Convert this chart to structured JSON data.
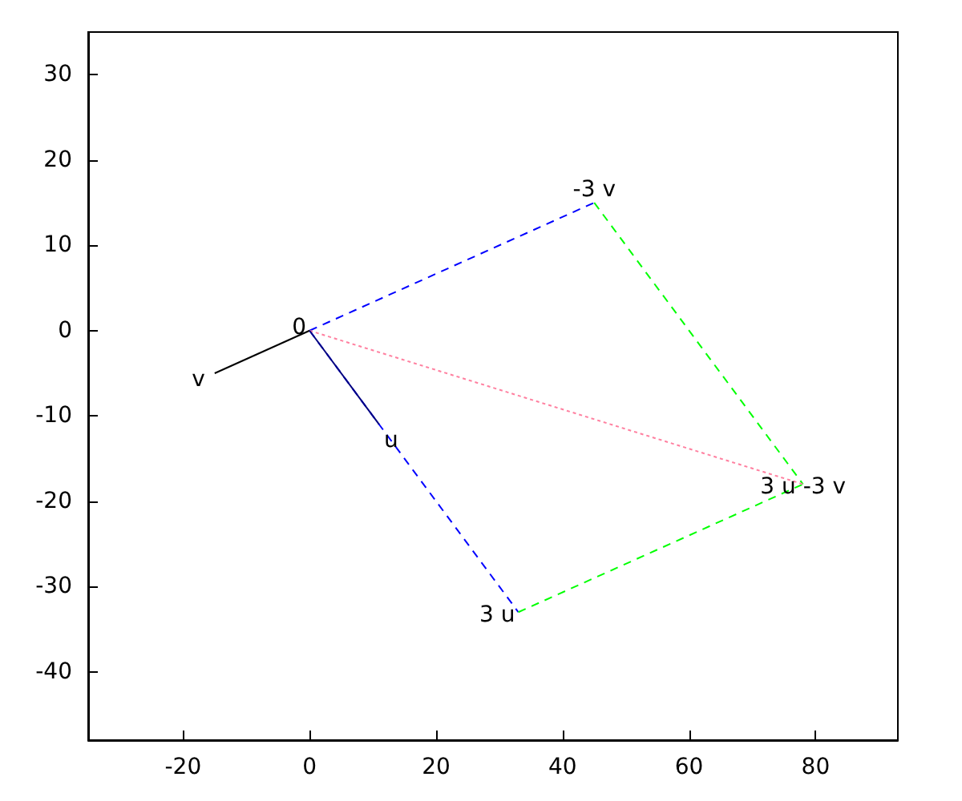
{
  "chart_data": {
    "type": "line",
    "xlim": [
      -35,
      93
    ],
    "ylim": [
      -48,
      35
    ],
    "xticks": [
      -20,
      0,
      20,
      40,
      60,
      80
    ],
    "yticks": [
      -40,
      -30,
      -20,
      -10,
      0,
      10,
      20,
      30
    ],
    "grid": false,
    "marker": "none",
    "series": [
      {
        "color": "#0000ff",
        "line_style": "dashed",
        "x": [
          0,
          45
        ],
        "values": [
          0,
          15
        ]
      },
      {
        "color": "#0000ff",
        "line_style": "dashed",
        "x": [
          0,
          33
        ],
        "values": [
          0,
          -33
        ]
      },
      {
        "color": "#00ff00",
        "line_style": "dashed",
        "x": [
          45,
          78
        ],
        "values": [
          15,
          -18
        ]
      },
      {
        "color": "#00ff00",
        "line_style": "dashed",
        "x": [
          33,
          78
        ],
        "values": [
          -33,
          -18
        ]
      },
      {
        "color": "#ff80a0",
        "line_style": "dotted",
        "x": [
          0,
          78
        ],
        "values": [
          0,
          -18
        ]
      },
      {
        "color": "#000000",
        "line_style": "solid",
        "x": [
          0,
          -15
        ],
        "values": [
          0,
          -5
        ]
      },
      {
        "color": "#000080",
        "line_style": "solid",
        "x": [
          0,
          11
        ],
        "values": [
          0,
          -11
        ]
      }
    ],
    "annotations": [
      {
        "text": "0",
        "x": 0,
        "y": 0
      },
      {
        "text": "v",
        "x": -15,
        "y": -5
      },
      {
        "text": "u",
        "x": 11,
        "y": -11
      },
      {
        "text": "-3 v",
        "x": 45,
        "y": 15
      },
      {
        "text": "3 u",
        "x": 33,
        "y": -33
      },
      {
        "text": "3 u -3 v",
        "x": 78,
        "y": -18
      }
    ]
  }
}
